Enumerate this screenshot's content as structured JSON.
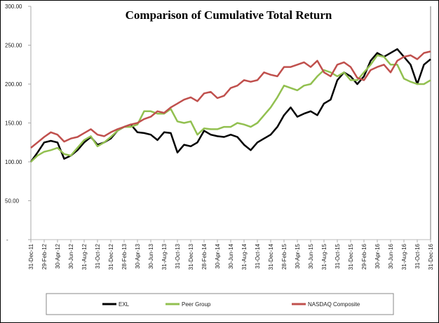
{
  "chart_data": {
    "type": "line",
    "title": "Comparison of Cumulative Total Return",
    "xlabel": "",
    "ylabel": "",
    "ylim": [
      0,
      300
    ],
    "yticks": [
      "-",
      "50.00",
      "100.00",
      "150.00",
      "200.00",
      "250.00",
      "300.00"
    ],
    "xticks": [
      "31-Dec-11",
      "29-Feb-12",
      "30-Apr-12",
      "30-Jun-12",
      "31-Aug-12",
      "31-Oct-12",
      "31-Dec-12",
      "28-Feb-13",
      "30-Apr-13",
      "30-Jun-13",
      "31-Aug-13",
      "31-Oct-13",
      "31-Dec-13",
      "28-Feb-14",
      "30-Apr-14",
      "30-Jun-14",
      "31-Aug-14",
      "31-Oct-14",
      "31-Dec-14",
      "28-Feb-15",
      "30-Apr-15",
      "30-Jun-15",
      "31-Aug-15",
      "31-Oct-15",
      "31-Dec-15",
      "29-Feb-16",
      "30-Apr-16",
      "30-Jun-16",
      "31-Aug-16",
      "31-Oct-16",
      "31-Dec-16"
    ],
    "x_start": "31-Dec-11",
    "x_end": "31-Dec-16",
    "x_frequency": "monthly",
    "grid": false,
    "legend": "bottom",
    "series": [
      {
        "name": "EXL",
        "color": "#000000",
        "values": [
          100,
          112,
          125,
          127,
          125,
          104,
          108,
          115,
          125,
          132,
          122,
          125,
          130,
          140,
          145,
          148,
          138,
          137,
          135,
          128,
          138,
          137,
          112,
          122,
          120,
          125,
          140,
          135,
          133,
          132,
          135,
          132,
          122,
          115,
          125,
          130,
          135,
          145,
          160,
          170,
          158,
          162,
          165,
          160,
          175,
          180,
          205,
          215,
          210,
          200,
          210,
          230,
          240,
          235,
          240,
          245,
          235,
          225,
          200,
          225,
          232
        ]
      },
      {
        "name": "Peer Group",
        "color": "#92C050",
        "values": [
          100,
          108,
          113,
          115,
          118,
          110,
          108,
          118,
          128,
          133,
          120,
          125,
          132,
          140,
          145,
          145,
          148,
          165,
          165,
          162,
          162,
          168,
          152,
          150,
          152,
          135,
          143,
          142,
          142,
          145,
          145,
          150,
          148,
          145,
          150,
          160,
          170,
          183,
          198,
          195,
          192,
          198,
          200,
          210,
          218,
          215,
          210,
          215,
          205,
          205,
          215,
          225,
          237,
          235,
          225,
          225,
          207,
          203,
          200,
          200,
          205
        ]
      },
      {
        "name": "NASDAQ Composite",
        "color": "#C0504D",
        "values": [
          118,
          125,
          132,
          138,
          135,
          126,
          130,
          132,
          137,
          142,
          135,
          133,
          138,
          142,
          145,
          148,
          150,
          155,
          158,
          165,
          163,
          170,
          175,
          180,
          183,
          178,
          188,
          190,
          182,
          185,
          195,
          198,
          205,
          203,
          205,
          215,
          212,
          210,
          222,
          222,
          225,
          228,
          222,
          230,
          215,
          210,
          225,
          228,
          222,
          208,
          205,
          218,
          222,
          225,
          215,
          230,
          235,
          237,
          232,
          240,
          242
        ]
      }
    ]
  }
}
